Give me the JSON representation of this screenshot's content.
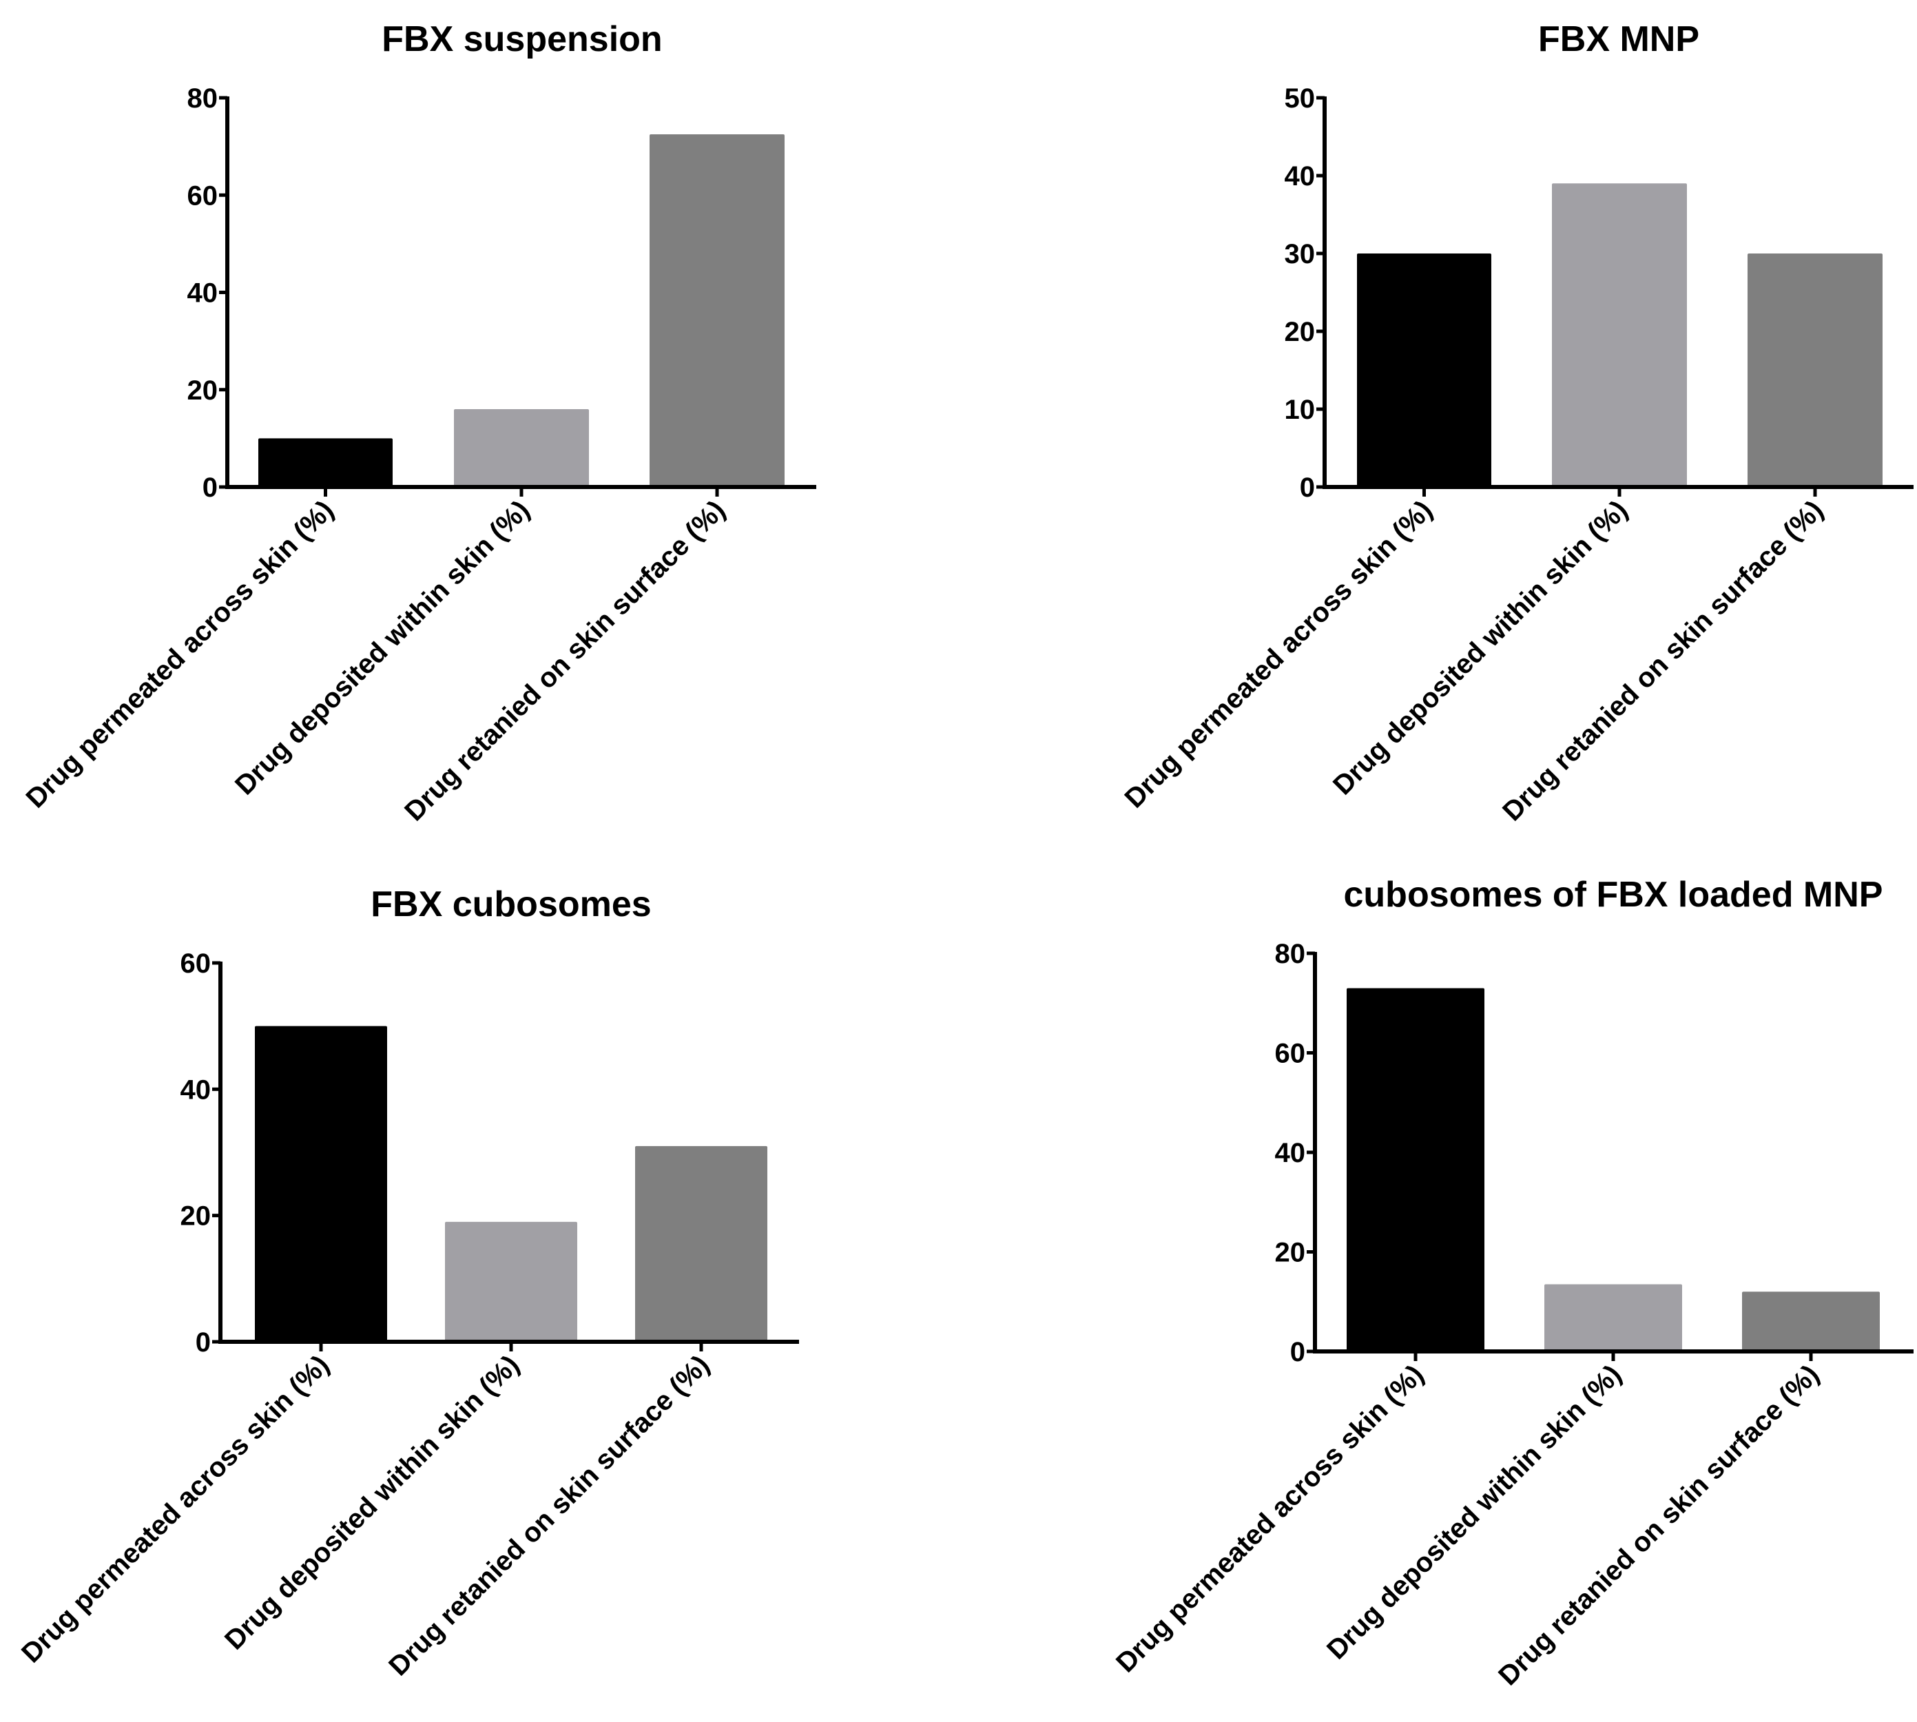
{
  "colors": {
    "permeated": "#000000",
    "deposited": "#a1a0a5",
    "retained": "#7f7f7f",
    "axis": "#000000"
  },
  "chart_data": [
    {
      "type": "bar",
      "title": "FBX suspension",
      "categories": [
        "Drug permeated across skin (%)",
        "Drug deposited within skin (%)",
        "Drug retanied on skin surface (%)"
      ],
      "values": [
        10,
        16,
        72.5
      ],
      "ylim": [
        0,
        80
      ],
      "yticks": [
        0,
        20,
        40,
        60,
        80
      ],
      "xlabel": "",
      "ylabel": ""
    },
    {
      "type": "bar",
      "title": "FBX MNP",
      "categories": [
        "Drug permeated across skin (%)",
        "Drug deposited within skin (%)",
        "Drug retanied on skin surface (%)"
      ],
      "values": [
        30,
        39,
        30
      ],
      "ylim": [
        0,
        50
      ],
      "yticks": [
        0,
        10,
        20,
        30,
        40,
        50
      ],
      "xlabel": "",
      "ylabel": ""
    },
    {
      "type": "bar",
      "title": "FBX cubosomes",
      "categories": [
        "Drug permeated across skin (%)",
        "Drug deposited within skin (%)",
        "Drug retanied on skin surface (%)"
      ],
      "values": [
        50,
        19,
        31
      ],
      "ylim": [
        0,
        60
      ],
      "yticks": [
        0,
        20,
        40,
        60
      ],
      "xlabel": "",
      "ylabel": ""
    },
    {
      "type": "bar",
      "title": "cubosomes of FBX loaded MNP",
      "categories": [
        "Drug permeated across skin (%)",
        "Drug deposited within skin (%)",
        "Drug retanied on skin surface (%)"
      ],
      "values": [
        73,
        13.5,
        12
      ],
      "ylim": [
        0,
        80
      ],
      "yticks": [
        0,
        20,
        40,
        60,
        80
      ],
      "xlabel": "",
      "ylabel": ""
    }
  ]
}
